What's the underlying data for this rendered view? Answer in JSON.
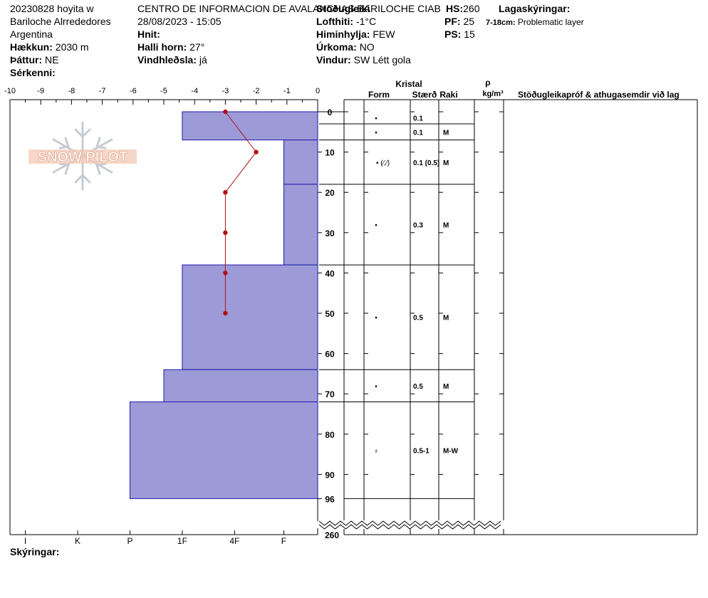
{
  "header": {
    "col1": {
      "line1": "20230828 hoyita w",
      "line2": "Bariloche Alrrededores",
      "line3": "Argentina",
      "elevation_label": "Hækkun:",
      "elevation_value": "2030 m",
      "aspect_label": "Þáttur:",
      "aspect_value": "NE",
      "features_label": "Sérkenni:"
    },
    "col2": {
      "operation": "CENTRO DE INFORMACION DE AVALANCHAS BARILOCHE CIAB",
      "datetime": "28/08/2023 - 15:05",
      "coords_label": "Hnit:",
      "slope_label": "Halli horn:",
      "slope_value": "27°",
      "wind_loading_label": "Vindhleðsla:",
      "wind_loading_value": "já"
    },
    "col3": {
      "stability_label": "Stöðugleiki",
      "air_temp_label": "Lofthiti:",
      "air_temp_value": "-1°C",
      "sky_label": "Himinhylja:",
      "sky_value": "FEW",
      "precip_label": "Úrkoma:",
      "precip_value": "NO",
      "wind_label": "Vindur:",
      "wind_value": "SW Létt gola"
    },
    "col4": {
      "hs_label": "HS:",
      "hs_value": "260",
      "pf_label": "PF:",
      "pf_value": "25",
      "ps_label": "PS:",
      "ps_value": "15"
    },
    "col5": {
      "layers_label": "Lagaskýringar:",
      "layer_note_range": "7-18cm:",
      "layer_note_text": "Problematic layer"
    }
  },
  "logo": {
    "text": "SNOW PILOT",
    "icon": "snowflake-icon"
  },
  "legend_label": "Skýringar:",
  "colors": {
    "hardness_fill": "#9d9ad8",
    "hardness_stroke": "#1f1aa6",
    "temperature": "#b01010",
    "grid": "#000000"
  },
  "chart_data": {
    "type": "snow_profile",
    "temp_axis": {
      "ticks": [
        -10,
        -9,
        -8,
        -7,
        -6,
        -5,
        -4,
        -3,
        -2,
        -1,
        0
      ],
      "range": [
        -10,
        0
      ]
    },
    "hardness_axis": {
      "labels": [
        "I",
        "K",
        "P",
        "1F",
        "4F",
        "F"
      ],
      "label_values": [
        9.5,
        7.8,
        6.1,
        4.4,
        2.7,
        1.1
      ]
    },
    "depth_axis": {
      "ticks": [
        0,
        10,
        20,
        30,
        40,
        50,
        60,
        70,
        80,
        90,
        96
      ],
      "range": [
        0,
        96
      ],
      "total_label": "260"
    },
    "hardness_layers": [
      {
        "top": 0,
        "bottom": 7,
        "hardness": 4.4
      },
      {
        "top": 7,
        "bottom": 18,
        "hardness": 1.1
      },
      {
        "top": 18,
        "bottom": 38,
        "hardness": 1.1
      },
      {
        "top": 38,
        "bottom": 64,
        "hardness": 4.4
      },
      {
        "top": 64,
        "bottom": 72,
        "hardness": 5.0
      },
      {
        "top": 72,
        "bottom": 96,
        "hardness": 6.1
      }
    ],
    "temperature_profile": [
      {
        "depth": 0,
        "temp": -3
      },
      {
        "depth": 10,
        "temp": -2
      },
      {
        "depth": 20,
        "temp": -3
      },
      {
        "depth": 30,
        "temp": -3
      },
      {
        "depth": 40,
        "temp": -3
      },
      {
        "depth": 50,
        "temp": -3
      }
    ],
    "table_headers": {
      "crystal": "Kristal",
      "form": "Form",
      "size": "Stærð",
      "moisture": "Raki",
      "density_symbol": "ρ",
      "density_unit": "kg/m³",
      "comments": "Stöðugleikapróf & athugasemdir við lag"
    },
    "layers_table": [
      {
        "top": 0,
        "bottom": 3,
        "form": "•",
        "size": "0.1",
        "moisture": ""
      },
      {
        "top": 3,
        "bottom": 7,
        "form": "•",
        "size": "0.1",
        "moisture": "M"
      },
      {
        "top": 7,
        "bottom": 18,
        "form": "• (⁄,⁄)",
        "size": "0.1 (0.5)",
        "moisture": "M"
      },
      {
        "top": 18,
        "bottom": 38,
        "form": "•",
        "size": "0.3",
        "moisture": "M"
      },
      {
        "top": 38,
        "bottom": 64,
        "form": "•",
        "size": "0.5",
        "moisture": "M"
      },
      {
        "top": 64,
        "bottom": 72,
        "form": "•",
        "size": "0.5",
        "moisture": "M"
      },
      {
        "top": 72,
        "bottom": 96,
        "form": "♁",
        "size": "0.5-1",
        "moisture": "M-W"
      }
    ]
  }
}
